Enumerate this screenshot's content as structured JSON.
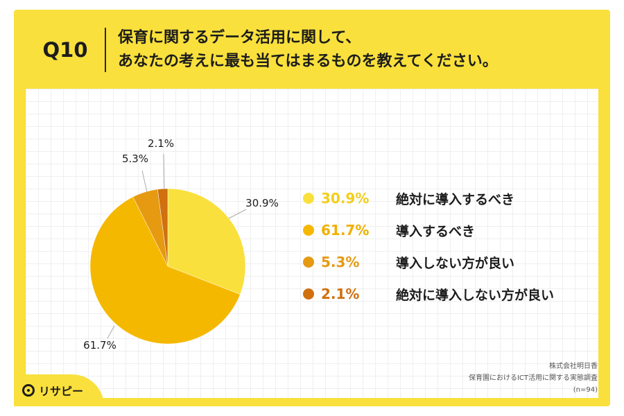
{
  "question": {
    "number": "Q10",
    "title_line1": "保育に関するデータ活用に関して、",
    "title_line2": "あなたの考えに最も当てはまるものを教えてください。"
  },
  "chart_data": {
    "type": "pie",
    "slices": [
      {
        "label": "絶対に導入するべき",
        "value": 30.9,
        "display": "30.9%",
        "color": "#f9e03c"
      },
      {
        "label": "導入するべき",
        "value": 61.7,
        "display": "61.7%",
        "color": "#f5b800"
      },
      {
        "label": "導入しない方が良い",
        "value": 5.3,
        "display": "5.3%",
        "color": "#e59a12"
      },
      {
        "label": "絶対に導入しない方が良い",
        "value": 2.1,
        "display": "2.1%",
        "color": "#d0700f"
      }
    ]
  },
  "source": {
    "company": "株式会社明日香",
    "survey": "保育園におけるICT活用に関する実態調査",
    "sample": "(n=94)"
  },
  "logo": {
    "text": "リサピー",
    "icon": "risapi-logo-icon"
  }
}
